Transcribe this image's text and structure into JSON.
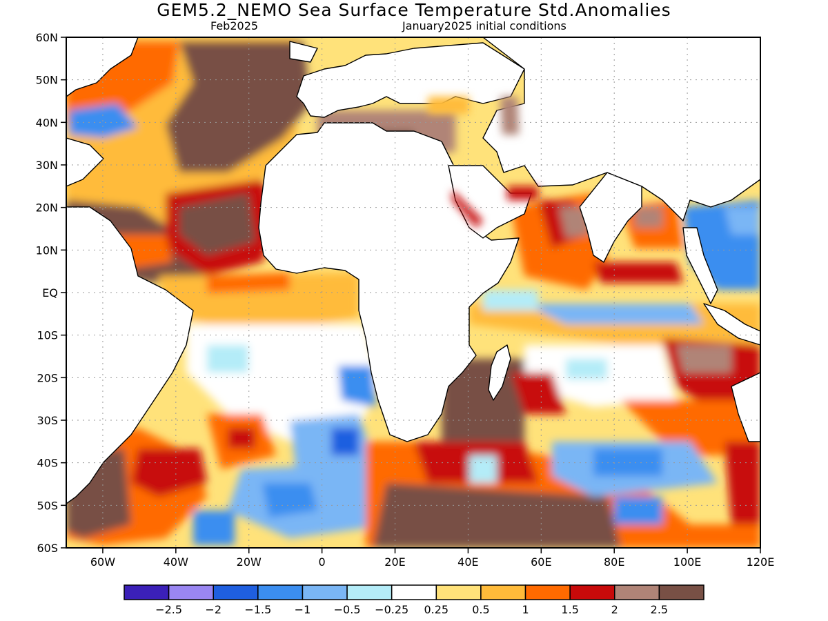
{
  "title": "GEM5.2_NEMO Sea Surface Temperature Std.Anomalies",
  "forecast_month": "Feb2025",
  "init_conditions": "January2025 initial conditions",
  "map": {
    "lon_labels": [
      "60W",
      "40W",
      "20W",
      "0",
      "20E",
      "40E",
      "60E",
      "80E",
      "100E",
      "120E"
    ],
    "lat_labels": [
      "60N",
      "50N",
      "40N",
      "30N",
      "20N",
      "10N",
      "EQ",
      "10S",
      "20S",
      "30S",
      "40S",
      "50S",
      "60S"
    ]
  },
  "colorbar": {
    "colors": [
      "#3b20b8",
      "#9a86f2",
      "#1f5fe0",
      "#3b8ef0",
      "#7ab6f5",
      "#b4ecf8",
      "#ffffff",
      "#ffe27a",
      "#ffbb3a",
      "#ff6a00",
      "#c80a0a",
      "#b08477",
      "#785045"
    ],
    "labels": [
      "−2.5",
      "−2",
      "−1.5",
      "−1",
      "−0.5",
      "−0.25",
      "0.25",
      "0.5",
      "1",
      "1.5",
      "2",
      "2.5"
    ]
  }
}
